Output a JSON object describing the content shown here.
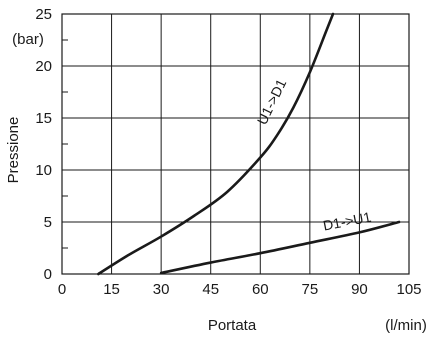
{
  "chart_data": {
    "type": "line",
    "xlabel": "Portata",
    "x_unit": "(l/min)",
    "ylabel": "Pressione",
    "y_unit": "(bar)",
    "xlim": [
      0,
      105
    ],
    "ylim": [
      0,
      25
    ],
    "x_ticks": [
      0,
      15,
      30,
      45,
      60,
      75,
      90,
      105
    ],
    "y_ticks": [
      0,
      5,
      10,
      15,
      20,
      25
    ],
    "grid": true,
    "legend": "none",
    "series": [
      {
        "name": "U1->D1",
        "color": "#1a1a1a",
        "points": [
          [
            11,
            0
          ],
          [
            20,
            1.8
          ],
          [
            30,
            3.6
          ],
          [
            40,
            5.6
          ],
          [
            50,
            7.9
          ],
          [
            60,
            11.2
          ],
          [
            65,
            13.3
          ],
          [
            70,
            16.0
          ],
          [
            75,
            19.4
          ],
          [
            80,
            23.4
          ],
          [
            82,
            25
          ]
        ]
      },
      {
        "name": "D1->U1",
        "color": "#1a1a1a",
        "points": [
          [
            30,
            0.1
          ],
          [
            45,
            1.1
          ],
          [
            60,
            2.0
          ],
          [
            75,
            3.0
          ],
          [
            90,
            4.0
          ],
          [
            102,
            5.0
          ]
        ]
      }
    ]
  }
}
